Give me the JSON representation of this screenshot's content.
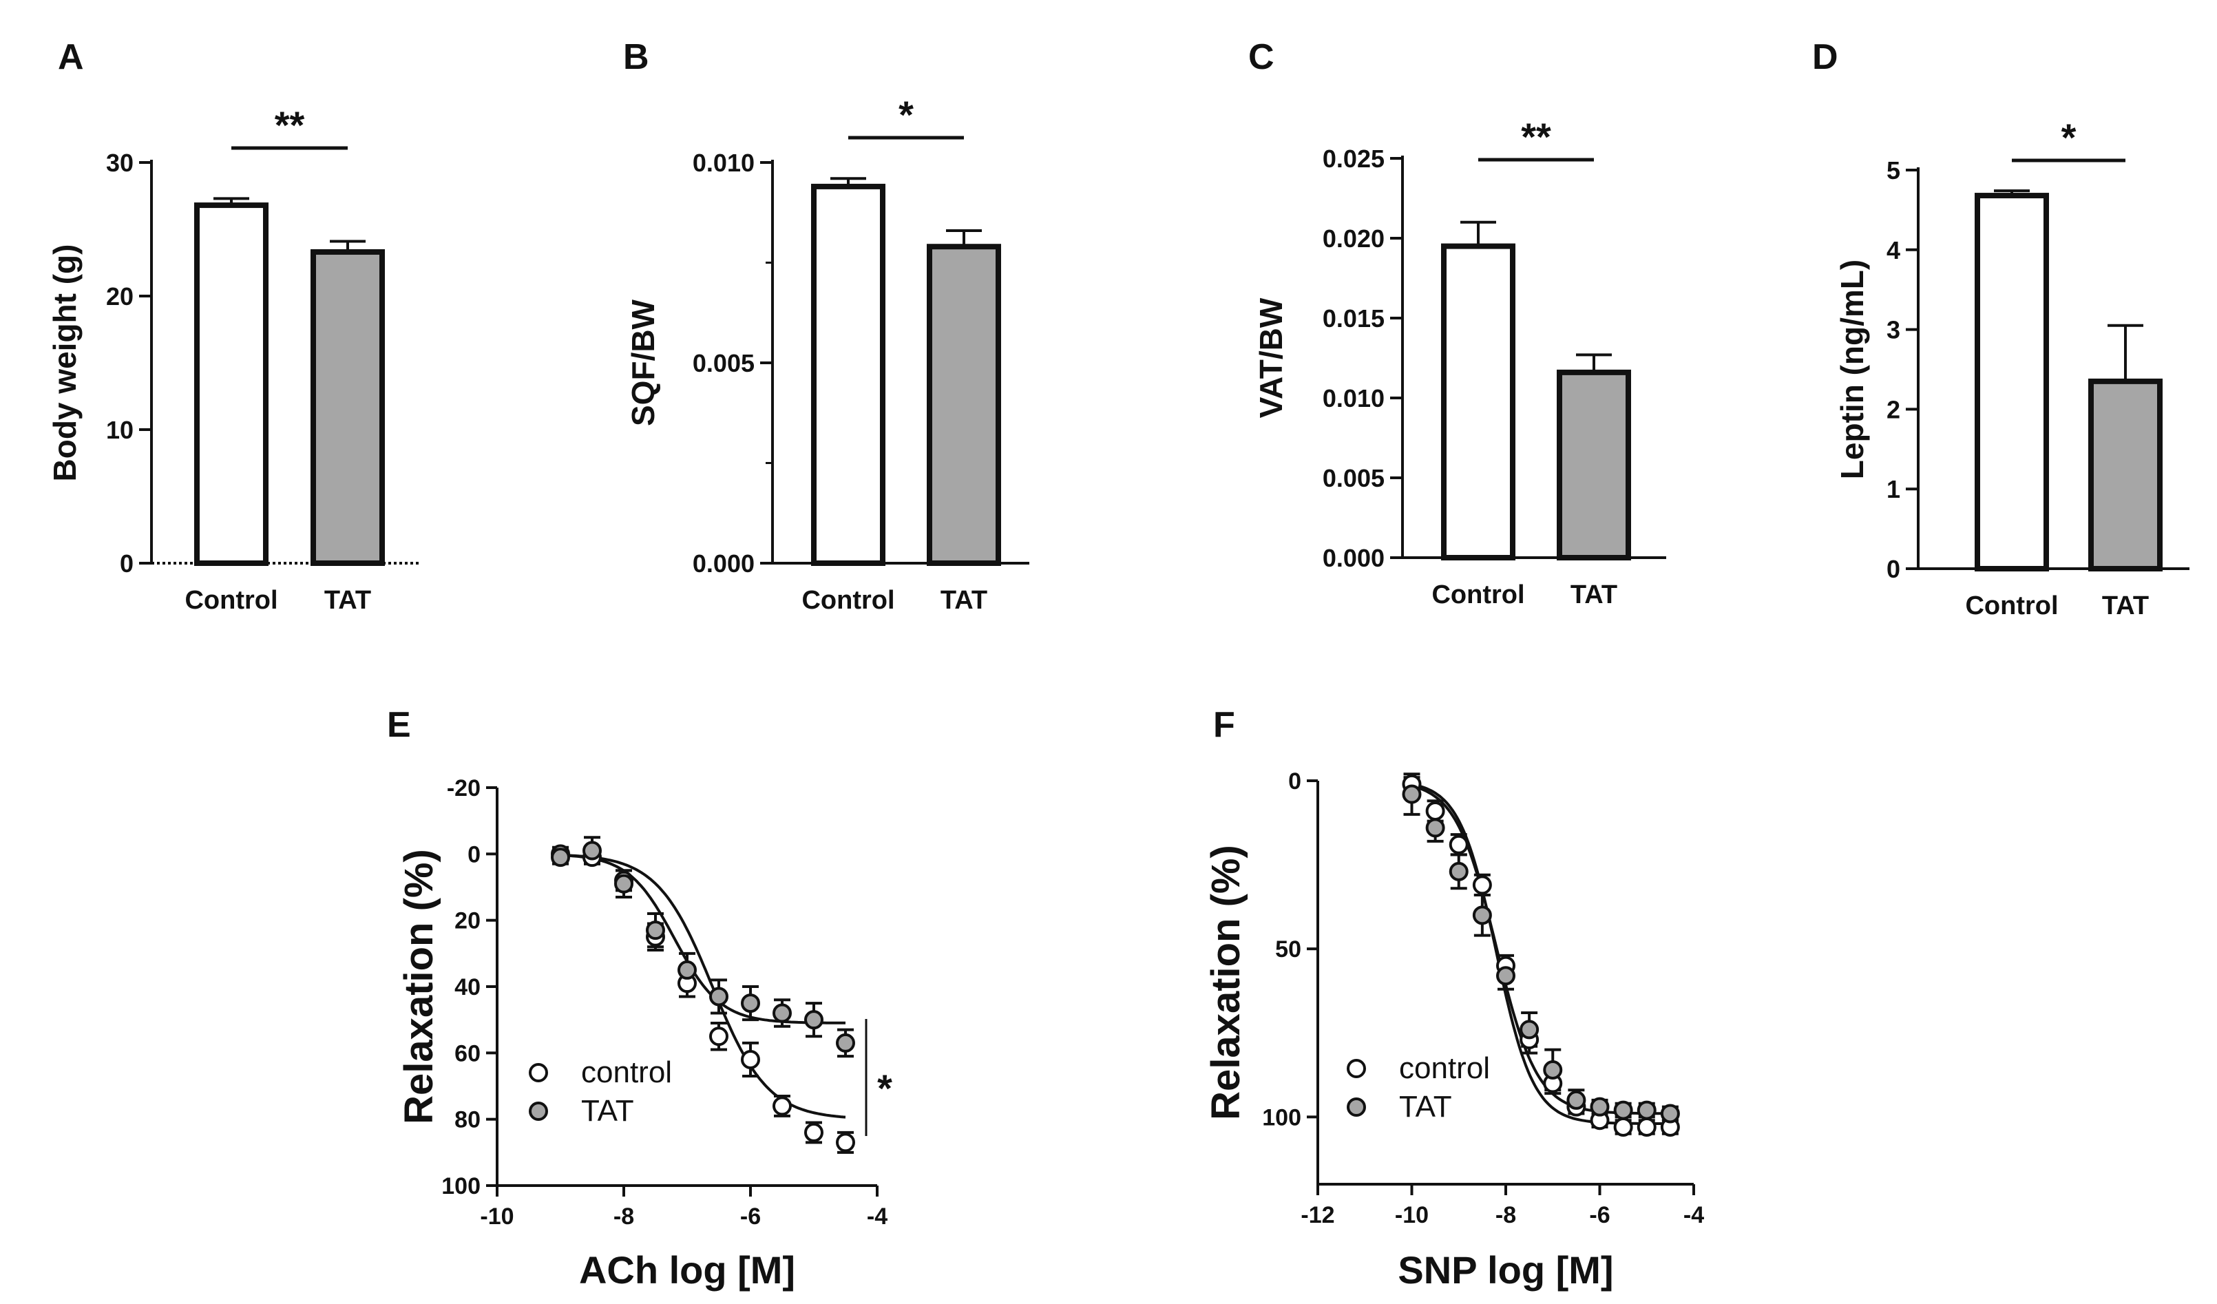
{
  "chart_data": [
    {
      "panel": "A",
      "type": "bar",
      "categories": [
        "Control",
        "TAT"
      ],
      "values": [
        26.8,
        23.3
      ],
      "errors": [
        0.5,
        0.8
      ],
      "ylabel": "Body weight (g)",
      "ylim": [
        0,
        30
      ],
      "yticks": [
        0,
        10,
        20,
        30
      ],
      "ytick_labels": [
        "0",
        "10",
        "20",
        "30"
      ],
      "significance": "**",
      "colors": [
        "#ffffff",
        "#a6a6a6"
      ]
    },
    {
      "panel": "B",
      "type": "bar",
      "categories": [
        "Control",
        "TAT"
      ],
      "values": [
        0.0094,
        0.0079
      ],
      "errors": [
        0.0002,
        0.0004
      ],
      "ylabel": "SQF/BW",
      "ylim": [
        0,
        0.01
      ],
      "yticks": [
        0,
        0.005,
        0.01
      ],
      "ytick_labels": [
        "0.000",
        "0.005",
        "0.010"
      ],
      "minor_yticks": [
        0.0025,
        0.0075
      ],
      "significance": "*",
      "colors": [
        "#ffffff",
        "#a6a6a6"
      ]
    },
    {
      "panel": "C",
      "type": "bar",
      "categories": [
        "Control",
        "TAT"
      ],
      "values": [
        0.0195,
        0.0116
      ],
      "errors": [
        0.0015,
        0.0011
      ],
      "ylabel": "VAT/BW",
      "ylim": [
        0,
        0.025
      ],
      "yticks": [
        0,
        0.005,
        0.01,
        0.015,
        0.02,
        0.025
      ],
      "ytick_labels": [
        "0.000",
        "0.005",
        "0.010",
        "0.015",
        "0.020",
        "0.025"
      ],
      "significance": "**",
      "colors": [
        "#ffffff",
        "#a6a6a6"
      ]
    },
    {
      "panel": "D",
      "type": "bar",
      "categories": [
        "Control",
        "TAT"
      ],
      "values": [
        4.68,
        2.35
      ],
      "errors": [
        0.06,
        0.7
      ],
      "ylabel": "Leptin (ng/mL)",
      "ylim": [
        0,
        5
      ],
      "yticks": [
        0,
        1,
        2,
        3,
        4,
        5
      ],
      "ytick_labels": [
        "0",
        "1",
        "2",
        "3",
        "4",
        "5"
      ],
      "significance": "*",
      "colors": [
        "#ffffff",
        "#a6a6a6"
      ]
    },
    {
      "panel": "E",
      "type": "scatter",
      "xlabel": "ACh log [M]",
      "ylabel": "Relaxation (%)",
      "xlim": [
        -10,
        -4
      ],
      "ylim": [
        -20,
        100
      ],
      "y_inverted": true,
      "xticks": [
        -10,
        -8,
        -6,
        -4
      ],
      "xtick_labels": [
        "-10",
        "-8",
        "-6",
        "-4"
      ],
      "yticks": [
        -20,
        0,
        20,
        40,
        60,
        80,
        100
      ],
      "ytick_labels": [
        "-20",
        "0",
        "20",
        "40",
        "60",
        "80",
        "100"
      ],
      "significance": "*",
      "series": [
        {
          "name": "control",
          "color": "#ffffff",
          "x": [
            -9,
            -8.5,
            -8,
            -7.5,
            -7,
            -6.5,
            -6,
            -5.5,
            -5,
            -4.5
          ],
          "y": [
            0,
            1,
            8,
            25,
            39,
            55,
            62,
            76,
            84,
            87
          ],
          "err": [
            2,
            2,
            3,
            4,
            4,
            4,
            5,
            3,
            3,
            3
          ],
          "fit": {
            "bottom": 0,
            "top": 80,
            "logEC50": -6.6,
            "hill": 1.0
          }
        },
        {
          "name": "TAT",
          "color": "#a6a6a6",
          "x": [
            -9,
            -8.5,
            -8,
            -7.5,
            -7,
            -6.5,
            -6,
            -5.5,
            -5,
            -4.5
          ],
          "y": [
            1,
            -1,
            9,
            23,
            35,
            43,
            45,
            48,
            50,
            57
          ],
          "err": [
            2,
            4,
            4,
            5,
            5,
            5,
            5,
            4,
            5,
            4
          ],
          "fit": {
            "bottom": 0,
            "top": 51,
            "logEC50": -7.2,
            "hill": 1.2
          }
        }
      ]
    },
    {
      "panel": "F",
      "type": "scatter",
      "xlabel": "SNP log [M]",
      "ylabel": "Relaxation (%)",
      "xlim": [
        -12,
        -4
      ],
      "ylim": [
        0,
        120
      ],
      "y_inverted": true,
      "xticks": [
        -12,
        -10,
        -8,
        -6,
        -4
      ],
      "xtick_labels": [
        "-12",
        "-10",
        "-8",
        "-6",
        "-4"
      ],
      "yticks": [
        0,
        50,
        100
      ],
      "ytick_labels": [
        "0",
        "50",
        "100"
      ],
      "series": [
        {
          "name": "control",
          "color": "#ffffff",
          "x": [
            -10,
            -9.5,
            -9,
            -8.5,
            -8,
            -7.5,
            -7,
            -6.5,
            -6,
            -5.5,
            -5,
            -4.5
          ],
          "y": [
            1,
            9,
            19,
            31,
            55,
            77,
            90,
            97,
            101,
            103,
            103,
            103
          ],
          "err": [
            2,
            3,
            3,
            3,
            3,
            4,
            3,
            2,
            2,
            2,
            2,
            2
          ],
          "fit": {
            "bottom": 0,
            "top": 102,
            "logEC50": -8.2,
            "hill": 1.1
          }
        },
        {
          "name": "TAT",
          "color": "#a6a6a6",
          "x": [
            -10,
            -9.5,
            -9,
            -8.5,
            -8,
            -7.5,
            -7,
            -6.5,
            -6,
            -5.5,
            -5,
            -4.5
          ],
          "y": [
            4,
            14,
            27,
            40,
            58,
            74,
            86,
            95,
            97,
            98,
            98,
            99
          ],
          "err": [
            6,
            4,
            5,
            6,
            4,
            5,
            6,
            3,
            2,
            2,
            2,
            2
          ],
          "fit": {
            "bottom": 0,
            "top": 99,
            "logEC50": -8.2,
            "hill": 1.0
          }
        }
      ]
    }
  ]
}
